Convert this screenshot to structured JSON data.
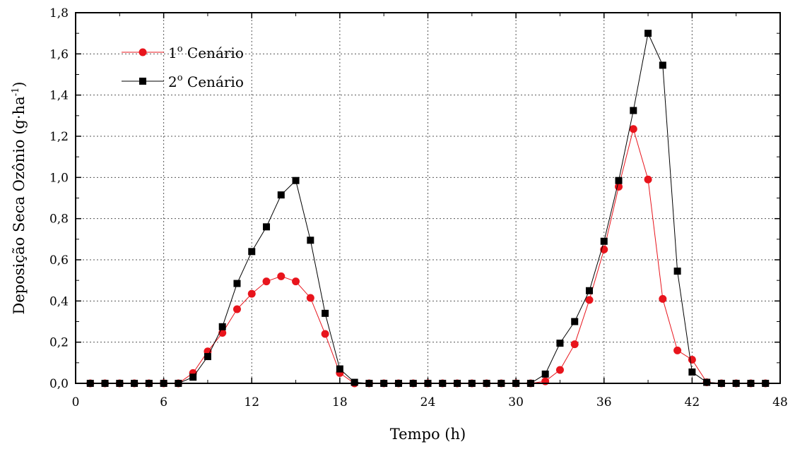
{
  "chart_data": {
    "type": "line",
    "title": "",
    "xlabel": "Tempo (h)",
    "ylabel": "Deposição Seca Ozônio (g·ha",
    "ylabel_superscript": "-1",
    "ylabel_suffix": ")",
    "xlim": [
      0,
      48
    ],
    "ylim": [
      0,
      1.8
    ],
    "xticks": [
      0,
      6,
      12,
      18,
      24,
      30,
      36,
      42,
      48
    ],
    "xtick_labels": [
      "0",
      "6",
      "12",
      "18",
      "24",
      "30",
      "36",
      "42",
      "48"
    ],
    "yticks": [
      0,
      0.2,
      0.4,
      0.6,
      0.8,
      1.0,
      1.2,
      1.4,
      1.6,
      1.8
    ],
    "ytick_labels": [
      "0,0",
      "0,2",
      "0,4",
      "0,6",
      "0,8",
      "1,0",
      "1,2",
      "1,4",
      "1,6",
      "1,8"
    ],
    "grid": true,
    "legend_position": "top-left",
    "series": [
      {
        "name": "1",
        "name_superscript": "o",
        "name_suffix": " Cenário",
        "color": "#e8141c",
        "marker": "circle",
        "x": [
          1,
          2,
          3,
          4,
          5,
          6,
          7,
          8,
          9,
          10,
          11,
          12,
          13,
          14,
          15,
          16,
          17,
          18,
          19,
          20,
          21,
          22,
          23,
          24,
          25,
          26,
          27,
          28,
          29,
          30,
          31,
          32,
          33,
          34,
          35,
          36,
          37,
          38,
          39,
          40,
          41,
          42,
          43,
          44,
          45,
          46,
          47
        ],
        "y": [
          0,
          0,
          0,
          0,
          0,
          0,
          0,
          0.05,
          0.155,
          0.245,
          0.36,
          0.435,
          0.495,
          0.52,
          0.495,
          0.415,
          0.24,
          0.05,
          0,
          0,
          0,
          0,
          0,
          0,
          0,
          0,
          0,
          0,
          0,
          0,
          0,
          0.01,
          0.065,
          0.19,
          0.405,
          0.65,
          0.955,
          1.235,
          0.99,
          0.41,
          0.16,
          0.115,
          0.005,
          0,
          0,
          0,
          0
        ]
      },
      {
        "name": "2",
        "name_superscript": "o",
        "name_suffix": " Cenário",
        "color": "#000000",
        "marker": "square",
        "x": [
          1,
          2,
          3,
          4,
          5,
          6,
          7,
          8,
          9,
          10,
          11,
          12,
          13,
          14,
          15,
          16,
          17,
          18,
          19,
          20,
          21,
          22,
          23,
          24,
          25,
          26,
          27,
          28,
          29,
          30,
          31,
          32,
          33,
          34,
          35,
          36,
          37,
          38,
          39,
          40,
          41,
          42,
          43,
          44,
          45,
          46,
          47
        ],
        "y": [
          0,
          0,
          0,
          0,
          0,
          0,
          0,
          0.03,
          0.13,
          0.275,
          0.485,
          0.64,
          0.76,
          0.915,
          0.985,
          0.695,
          0.34,
          0.07,
          0.005,
          0,
          0,
          0,
          0,
          0,
          0,
          0,
          0,
          0,
          0,
          0,
          0,
          0.045,
          0.195,
          0.3,
          0.45,
          0.69,
          0.985,
          1.325,
          1.7,
          1.545,
          0.545,
          0.055,
          0.005,
          0,
          0,
          0,
          0
        ]
      }
    ]
  }
}
